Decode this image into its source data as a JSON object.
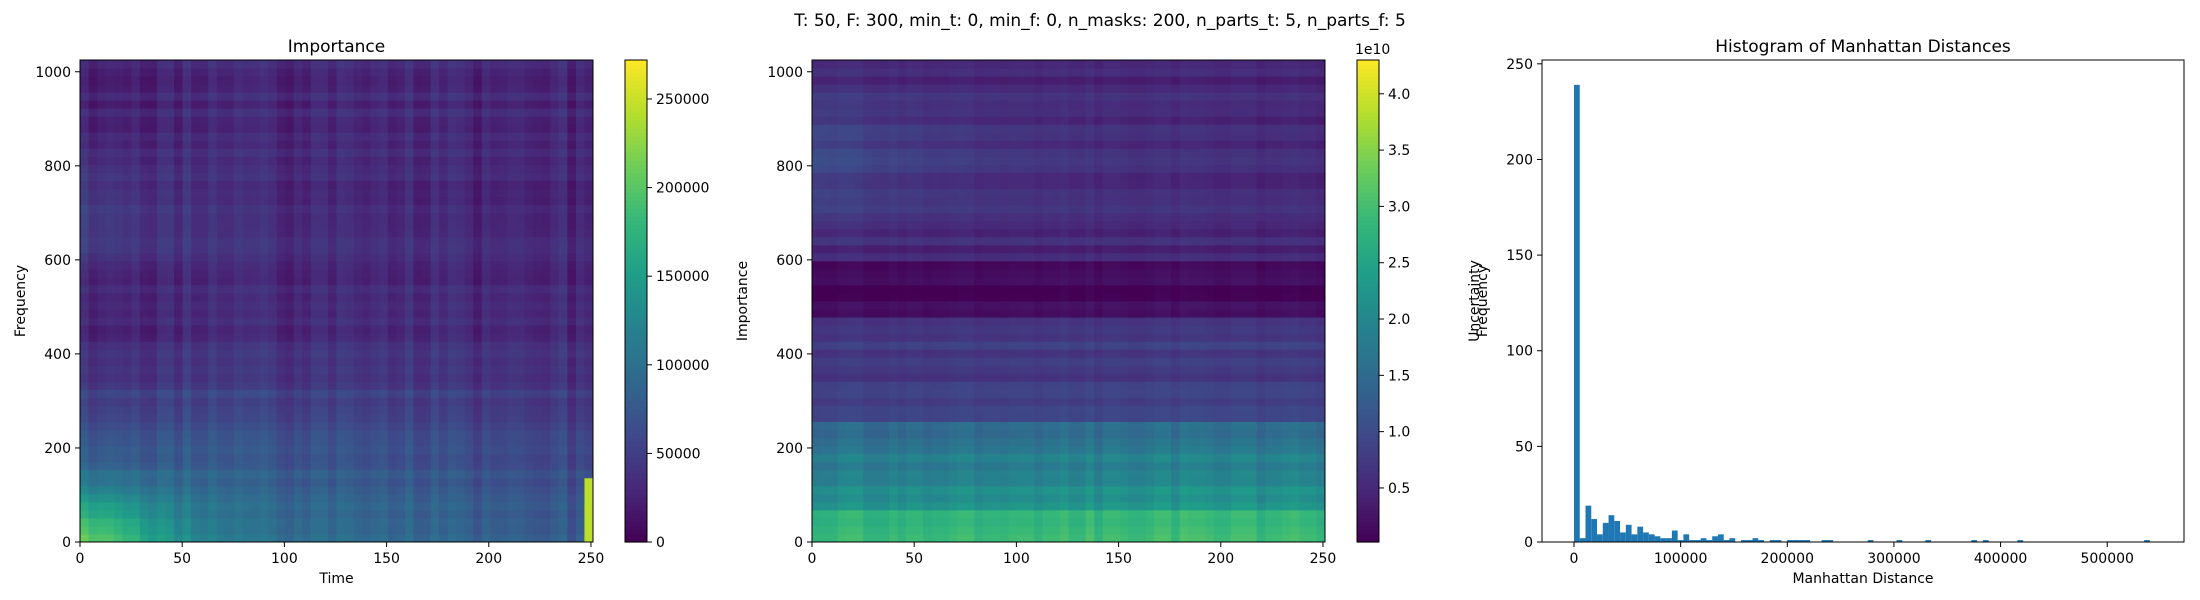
{
  "figure": {
    "suptitle": "T: 50, F: 300, min_t: 0, min_f: 0, n_masks: 200, n_parts_t: 5, n_parts_f: 5"
  },
  "chart_data": [
    {
      "type": "heatmap",
      "title": "Importance",
      "xlabel": "Time",
      "ylabel": "Frequency",
      "xlim": [
        0,
        251
      ],
      "ylim": [
        0,
        1025
      ],
      "xticks": [
        0,
        50,
        100,
        150,
        200,
        250
      ],
      "yticks": [
        0,
        200,
        400,
        600,
        800,
        1000
      ],
      "colormap": "viridis",
      "colorbar": {
        "label": "Importance",
        "range": [
          0,
          272000
        ],
        "ticks": [
          0,
          50000,
          100000,
          150000,
          200000,
          250000
        ],
        "tick_labels": [
          "0",
          "50000",
          "100000",
          "150000",
          "200000",
          "250000"
        ]
      },
      "description_of_pattern": {
        "high_region": "bottom-left: frequency 0-120, time 0-45 (~230000)",
        "mid_region": "frequency 0-450 (~80000-140000), decaying with time",
        "low_region": "frequency 450-1025 (~20000-45000)"
      }
    },
    {
      "type": "heatmap",
      "title": "",
      "xlabel": "",
      "ylabel": "",
      "xlim": [
        0,
        251
      ],
      "ylim": [
        0,
        1025
      ],
      "xticks": [
        0,
        50,
        100,
        150,
        200,
        250
      ],
      "yticks": [
        0,
        200,
        400,
        600,
        800,
        1000
      ],
      "colormap": "viridis",
      "colorbar": {
        "label": "Uncertainty",
        "offset_text": "1e10",
        "range": [
          0.02,
          4.3
        ],
        "ticks": [
          0.5,
          1.0,
          1.5,
          2.0,
          2.5,
          3.0,
          3.5,
          4.0
        ],
        "tick_labels": [
          "0.5",
          "1.0",
          "1.5",
          "2.0",
          "2.5",
          "3.0",
          "3.5",
          "4.0"
        ]
      },
      "description_of_pattern": {
        "high_region": "frequency 0-60 (~2.2-2.8e10)",
        "mid_region": "frequency 60-250 (~1.0-1.8e10)",
        "low_region": "frequency 250-1025 (~0.1-0.8e10), horizontal banding"
      }
    },
    {
      "type": "bar",
      "title": "Histogram of Manhattan Distances",
      "xlabel": "Manhattan Distance",
      "ylabel": "Frequency",
      "xlim": [
        -30000,
        572000
      ],
      "ylim": [
        0,
        252
      ],
      "xticks": [
        0,
        100000,
        200000,
        300000,
        400000,
        500000
      ],
      "yticks": [
        0,
        50,
        100,
        150,
        200,
        250
      ],
      "bar_color": "#1f77b4",
      "bin_width": 5400,
      "bin_starts": [
        0,
        5400,
        10800,
        16200,
        21600,
        27000,
        32400,
        37800,
        43200,
        48600,
        54000,
        59400,
        64800,
        70200,
        75600,
        81000,
        86400,
        91800,
        97200,
        102600,
        108000,
        113400,
        118800,
        124200,
        129600,
        135000,
        140400,
        145800,
        151200,
        156600,
        162000,
        167400,
        172800,
        178200,
        183600,
        189000,
        194400,
        199800,
        205200,
        210600,
        216000,
        221400,
        226800,
        232200,
        237600,
        275400,
        302400,
        329400,
        372600,
        383400,
        415800,
        534600
      ],
      "counts": [
        239,
        2,
        19,
        12,
        4,
        10,
        14,
        11,
        5,
        9,
        4,
        8,
        5,
        4,
        3,
        2,
        2,
        6,
        1,
        4,
        1,
        1,
        2,
        1,
        3,
        4,
        1,
        2,
        0,
        1,
        1,
        2,
        1,
        0,
        1,
        1,
        0,
        1,
        1,
        1,
        1,
        0,
        0,
        1,
        1,
        1,
        1,
        1,
        1,
        1,
        1,
        1
      ]
    }
  ]
}
